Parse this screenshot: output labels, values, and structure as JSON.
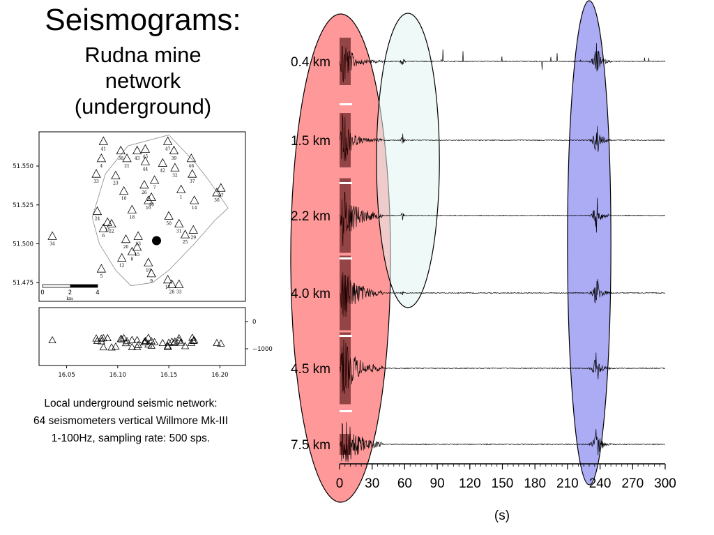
{
  "title": "Seismograms:",
  "subtitle_lines": [
    "Rudna mine",
    "network",
    "(underground)"
  ],
  "caption_lines": [
    "Local underground seismic network:",
    "64 seismometers vertical Willmore Mk-III",
    "1-100Hz, sampling rate: 500 sps."
  ],
  "colors": {
    "p_highlight": "#ff9999",
    "s_highlight": "#e2f4f2",
    "late_highlight": "#8080f0",
    "trace": "#000000"
  },
  "chart_data": [
    {
      "type": "line",
      "name": "seismogram-section",
      "xlabel": "(s)",
      "xlim": [
        0,
        300
      ],
      "xticks": [
        "0",
        "30",
        "60",
        "90",
        "120",
        "150",
        "180",
        "210",
        "240",
        "270",
        "300"
      ],
      "traces": [
        {
          "label": "0.4 km"
        },
        {
          "label": "1.5 km"
        },
        {
          "label": "2.2 km"
        },
        {
          "label": "4.0 km"
        },
        {
          "label": "4.5 km"
        },
        {
          "label": "7.5 km"
        }
      ],
      "highlights": [
        {
          "x_range": [
            -45,
            47
          ],
          "color": "p_highlight"
        },
        {
          "x_range": [
            34,
            92
          ],
          "traces": [
            0,
            3
          ],
          "color": "s_highlight"
        },
        {
          "x_range": [
            210,
            250
          ],
          "color": "late_highlight"
        }
      ]
    },
    {
      "type": "scatter",
      "name": "station-map",
      "yticks": [
        "51.475",
        "51.500",
        "51.525",
        "51.550"
      ],
      "xticks": [
        "16.05",
        "16.10",
        "16.15",
        "16.20"
      ],
      "ylim": [
        51.463,
        51.572
      ],
      "xlim": [
        16.023,
        16.225
      ],
      "scalebar_ticks": [
        "0",
        "2",
        "4"
      ],
      "scalebar_unit": "km",
      "stations": [
        {
          "id": "41",
          "lon": 16.086,
          "lat": 51.566
        },
        {
          "id": "38",
          "lon": 16.103,
          "lat": 51.56
        },
        {
          "id": "43",
          "lon": 16.119,
          "lat": 51.56
        },
        {
          "id": "45",
          "lon": 16.127,
          "lat": 51.561
        },
        {
          "id": "47",
          "lon": 16.149,
          "lat": 51.566
        },
        {
          "id": "39",
          "lon": 16.155,
          "lat": 51.56
        },
        {
          "id": "4",
          "lon": 16.084,
          "lat": 51.555
        },
        {
          "id": "21",
          "lon": 16.109,
          "lat": 51.555
        },
        {
          "id": "44",
          "lon": 16.127,
          "lat": 51.553
        },
        {
          "id": "42",
          "lon": 16.144,
          "lat": 51.552
        },
        {
          "id": "46",
          "lon": 16.172,
          "lat": 51.555
        },
        {
          "id": "33",
          "lon": 16.079,
          "lat": 51.545
        },
        {
          "id": "23",
          "lon": 16.098,
          "lat": 51.544
        },
        {
          "id": "32",
          "lon": 16.156,
          "lat": 51.549
        },
        {
          "id": "37",
          "lon": 16.173,
          "lat": 51.545
        },
        {
          "id": "7",
          "lon": 16.136,
          "lat": 51.541
        },
        {
          "id": "26",
          "lon": 16.126,
          "lat": 51.538
        },
        {
          "id": "10",
          "lon": 16.106,
          "lat": 51.534
        },
        {
          "id": "1",
          "lon": 16.162,
          "lat": 51.535
        },
        {
          "id": "36",
          "lon": 16.197,
          "lat": 51.533
        },
        {
          "id": "27",
          "lon": 16.201,
          "lat": 51.536
        },
        {
          "id": "16",
          "lon": 16.13,
          "lat": 51.528
        },
        {
          "id": "40",
          "lon": 16.133,
          "lat": 51.53
        },
        {
          "id": "14",
          "lon": 16.175,
          "lat": 51.528
        },
        {
          "id": "18",
          "lon": 16.114,
          "lat": 51.522
        },
        {
          "id": "24",
          "lon": 16.08,
          "lat": 51.521
        },
        {
          "id": "50",
          "lon": 16.15,
          "lat": 51.518
        },
        {
          "id": "11",
          "lon": 16.09,
          "lat": 51.514
        },
        {
          "id": "22",
          "lon": 16.094,
          "lat": 51.513
        },
        {
          "id": "6",
          "lon": 16.086,
          "lat": 51.51
        },
        {
          "id": "31",
          "lon": 16.16,
          "lat": 51.513
        },
        {
          "id": "29",
          "lon": 16.174,
          "lat": 51.509
        },
        {
          "id": "25",
          "lon": 16.166,
          "lat": 51.506
        },
        {
          "id": "34",
          "lon": 16.036,
          "lat": 51.505
        },
        {
          "id": "13",
          "lon": 16.12,
          "lat": 51.505
        },
        {
          "id": "20",
          "lon": 16.108,
          "lat": 51.503
        },
        {
          "id": "15",
          "lon": 16.119,
          "lat": 51.498
        },
        {
          "id": "8",
          "lon": 16.114,
          "lat": 51.495
        },
        {
          "id": "12",
          "lon": 16.104,
          "lat": 51.491
        },
        {
          "id": "19",
          "lon": 16.13,
          "lat": 51.488
        },
        {
          "id": "9",
          "lon": 16.133,
          "lat": 51.481
        },
        {
          "id": "5",
          "lon": 16.084,
          "lat": 51.484
        },
        {
          "id": "17",
          "lon": 16.149,
          "lat": 51.477
        },
        {
          "id": "28",
          "lon": 16.153,
          "lat": 51.474
        },
        {
          "id": "33",
          "lon": 16.16,
          "lat": 51.474
        }
      ]
    },
    {
      "type": "scatter",
      "name": "depth-section",
      "yticks": [
        "0",
        "−1000"
      ],
      "xticks": [
        "16.05",
        "16.10",
        "16.15",
        "16.20"
      ]
    }
  ]
}
